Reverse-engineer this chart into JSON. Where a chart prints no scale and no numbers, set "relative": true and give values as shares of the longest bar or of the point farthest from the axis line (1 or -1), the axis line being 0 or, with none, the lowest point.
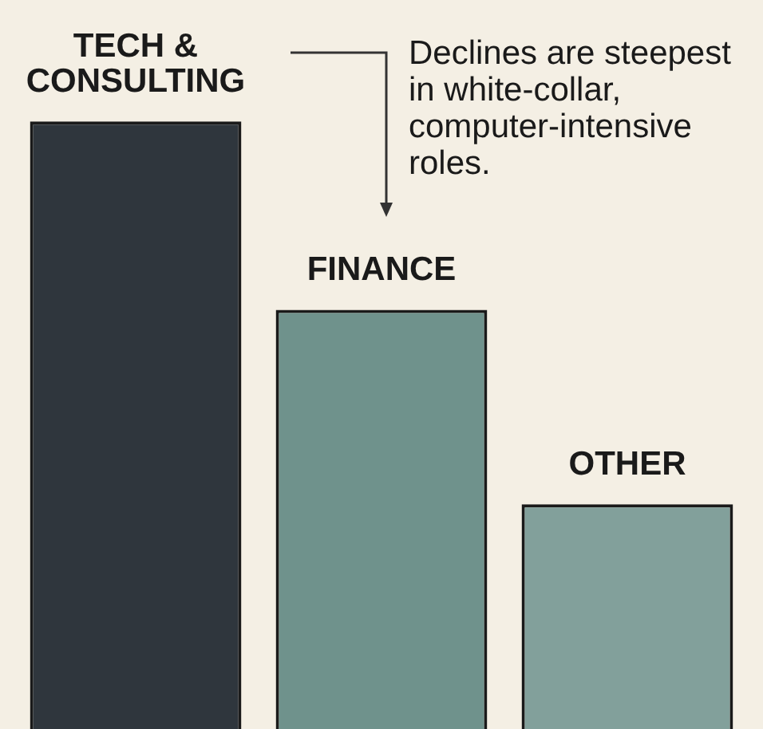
{
  "chart_data": {
    "type": "bar",
    "relative": true,
    "categories": [
      "TECH & CONSULTING",
      "FINANCE",
      "OTHER"
    ],
    "values": [
      1,
      0.69,
      0.37
    ],
    "colors": [
      "#2f363d",
      "#6f928c",
      "#82a09b"
    ],
    "annotations": [
      "Declines are steepest in white-collar, computer-intensive roles."
    ],
    "legend": false
  }
}
